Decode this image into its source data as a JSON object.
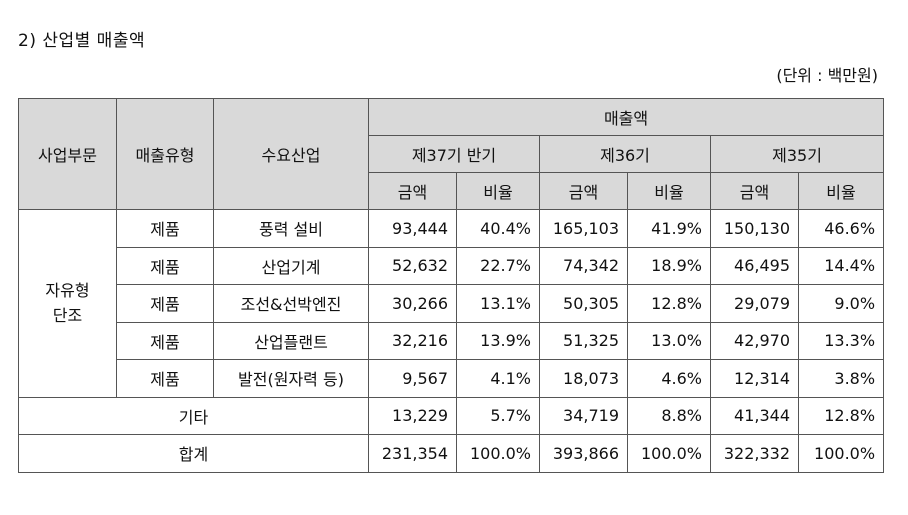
{
  "title": "2) 산업별 매출액",
  "unit": "(단위 : 백만원)",
  "header": {
    "col_division": "사업부문",
    "col_type": "매출유형",
    "col_industry": "수요산업",
    "sales": "매출액",
    "periods": [
      "제37기 반기",
      "제36기",
      "제35기"
    ],
    "amount": "금액",
    "ratio": "비율"
  },
  "division": "자유형\n단조",
  "rows": [
    {
      "type": "제품",
      "industry": "풍력 설비",
      "p37_amt": "93,444",
      "p37_ratio": "40.4%",
      "p36_amt": "165,103",
      "p36_ratio": "41.9%",
      "p35_amt": "150,130",
      "p35_ratio": "46.6%"
    },
    {
      "type": "제품",
      "industry": "산업기계",
      "p37_amt": "52,632",
      "p37_ratio": "22.7%",
      "p36_amt": "74,342",
      "p36_ratio": "18.9%",
      "p35_amt": "46,495",
      "p35_ratio": "14.4%"
    },
    {
      "type": "제품",
      "industry": "조선&선박엔진",
      "p37_amt": "30,266",
      "p37_ratio": "13.1%",
      "p36_amt": "50,305",
      "p36_ratio": "12.8%",
      "p35_amt": "29,079",
      "p35_ratio": "9.0%"
    },
    {
      "type": "제품",
      "industry": "산업플랜트",
      "p37_amt": "32,216",
      "p37_ratio": "13.9%",
      "p36_amt": "51,325",
      "p36_ratio": "13.0%",
      "p35_amt": "42,970",
      "p35_ratio": "13.3%"
    },
    {
      "type": "제품",
      "industry": "발전(원자력 등)",
      "p37_amt": "9,567",
      "p37_ratio": "4.1%",
      "p36_amt": "18,073",
      "p36_ratio": "4.6%",
      "p35_amt": "12,314",
      "p35_ratio": "3.8%"
    }
  ],
  "other": {
    "label": "기타",
    "p37_amt": "13,229",
    "p37_ratio": "5.7%",
    "p36_amt": "34,719",
    "p36_ratio": "8.8%",
    "p35_amt": "41,344",
    "p35_ratio": "12.8%"
  },
  "total": {
    "label": "합계",
    "p37_amt": "231,354",
    "p37_ratio": "100.0%",
    "p36_amt": "393,866",
    "p36_ratio": "100.0%",
    "p35_amt": "322,332",
    "p35_ratio": "100.0%"
  }
}
